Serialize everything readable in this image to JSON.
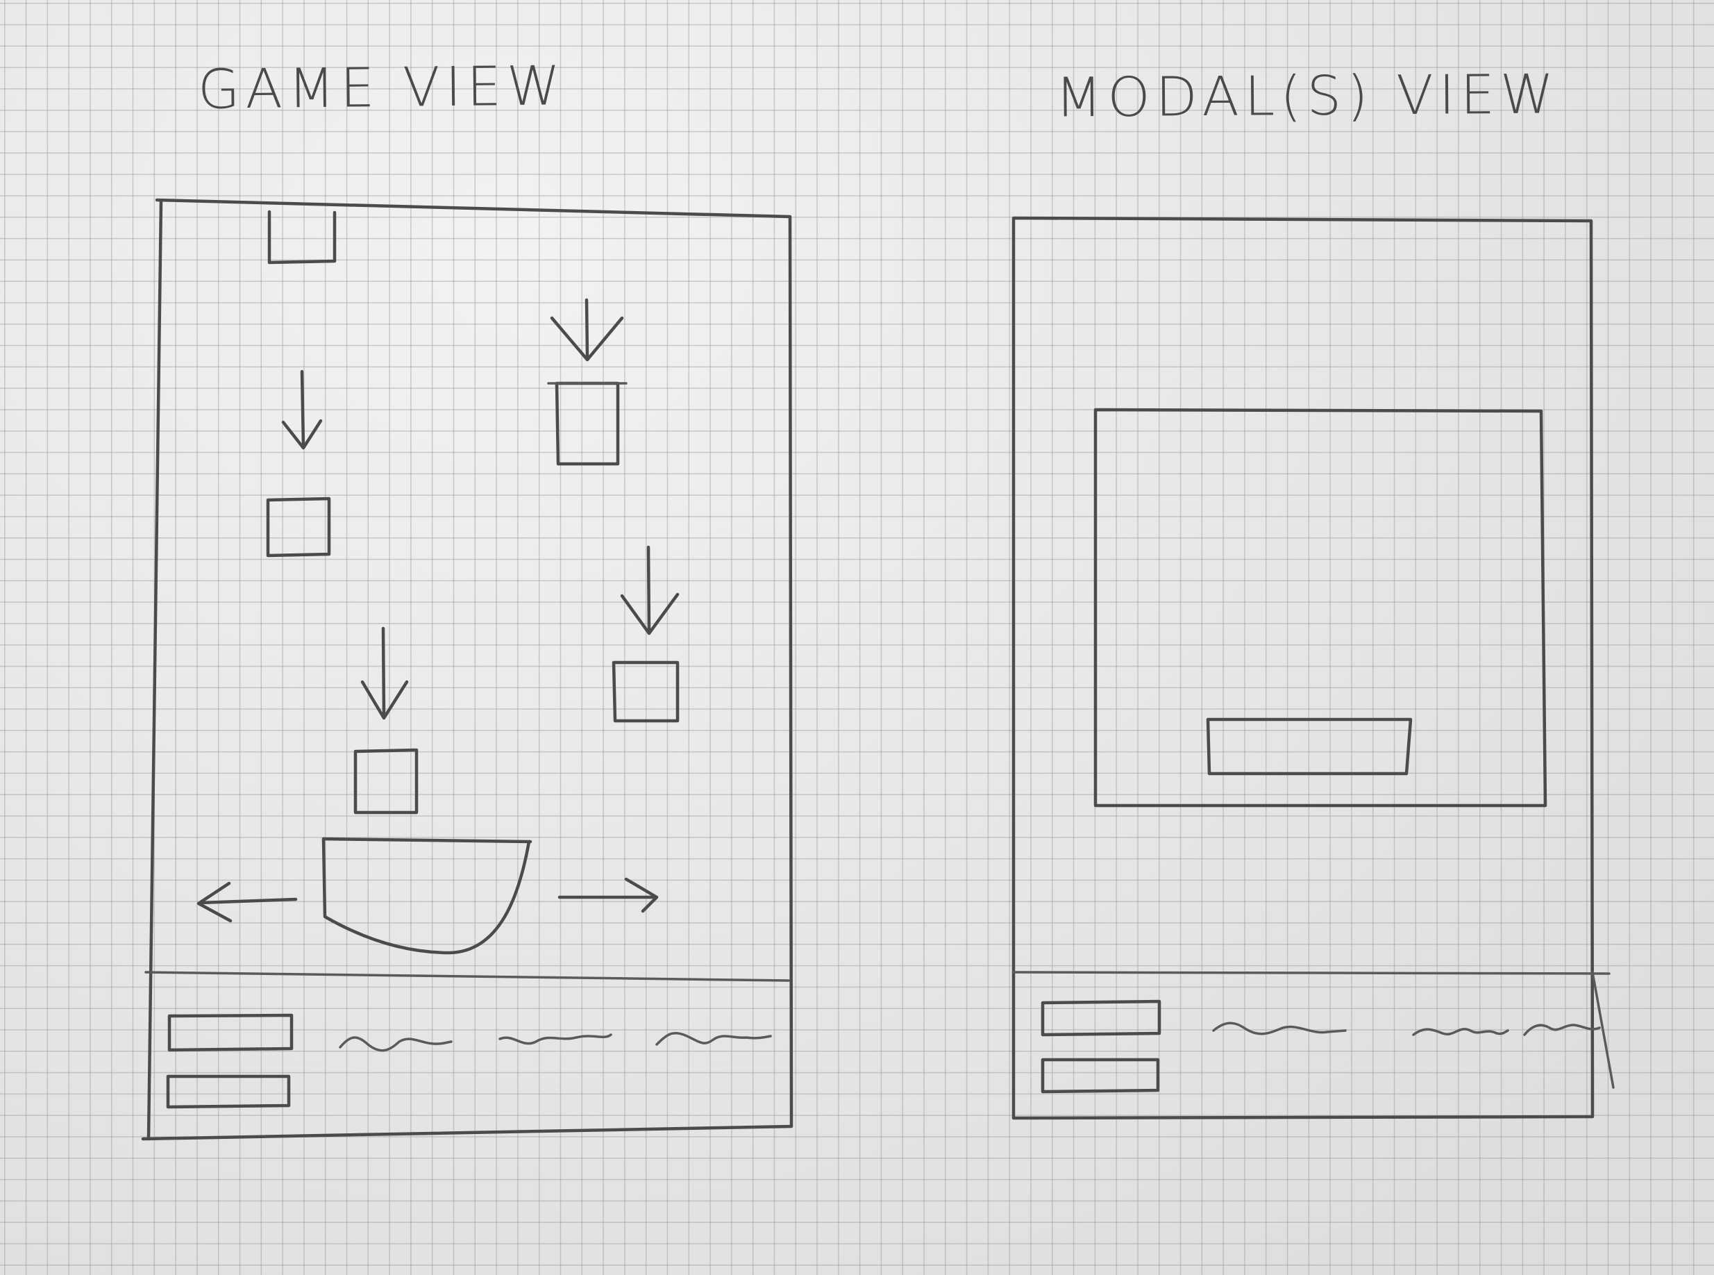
{
  "sketch": {
    "game_view_title": "GAME VIEW",
    "modal_view_title": "MODAL(S) VIEW"
  },
  "colors": {
    "paper": "#ebebe9",
    "grid": "#969696",
    "pencil": "#4b4b4b"
  }
}
